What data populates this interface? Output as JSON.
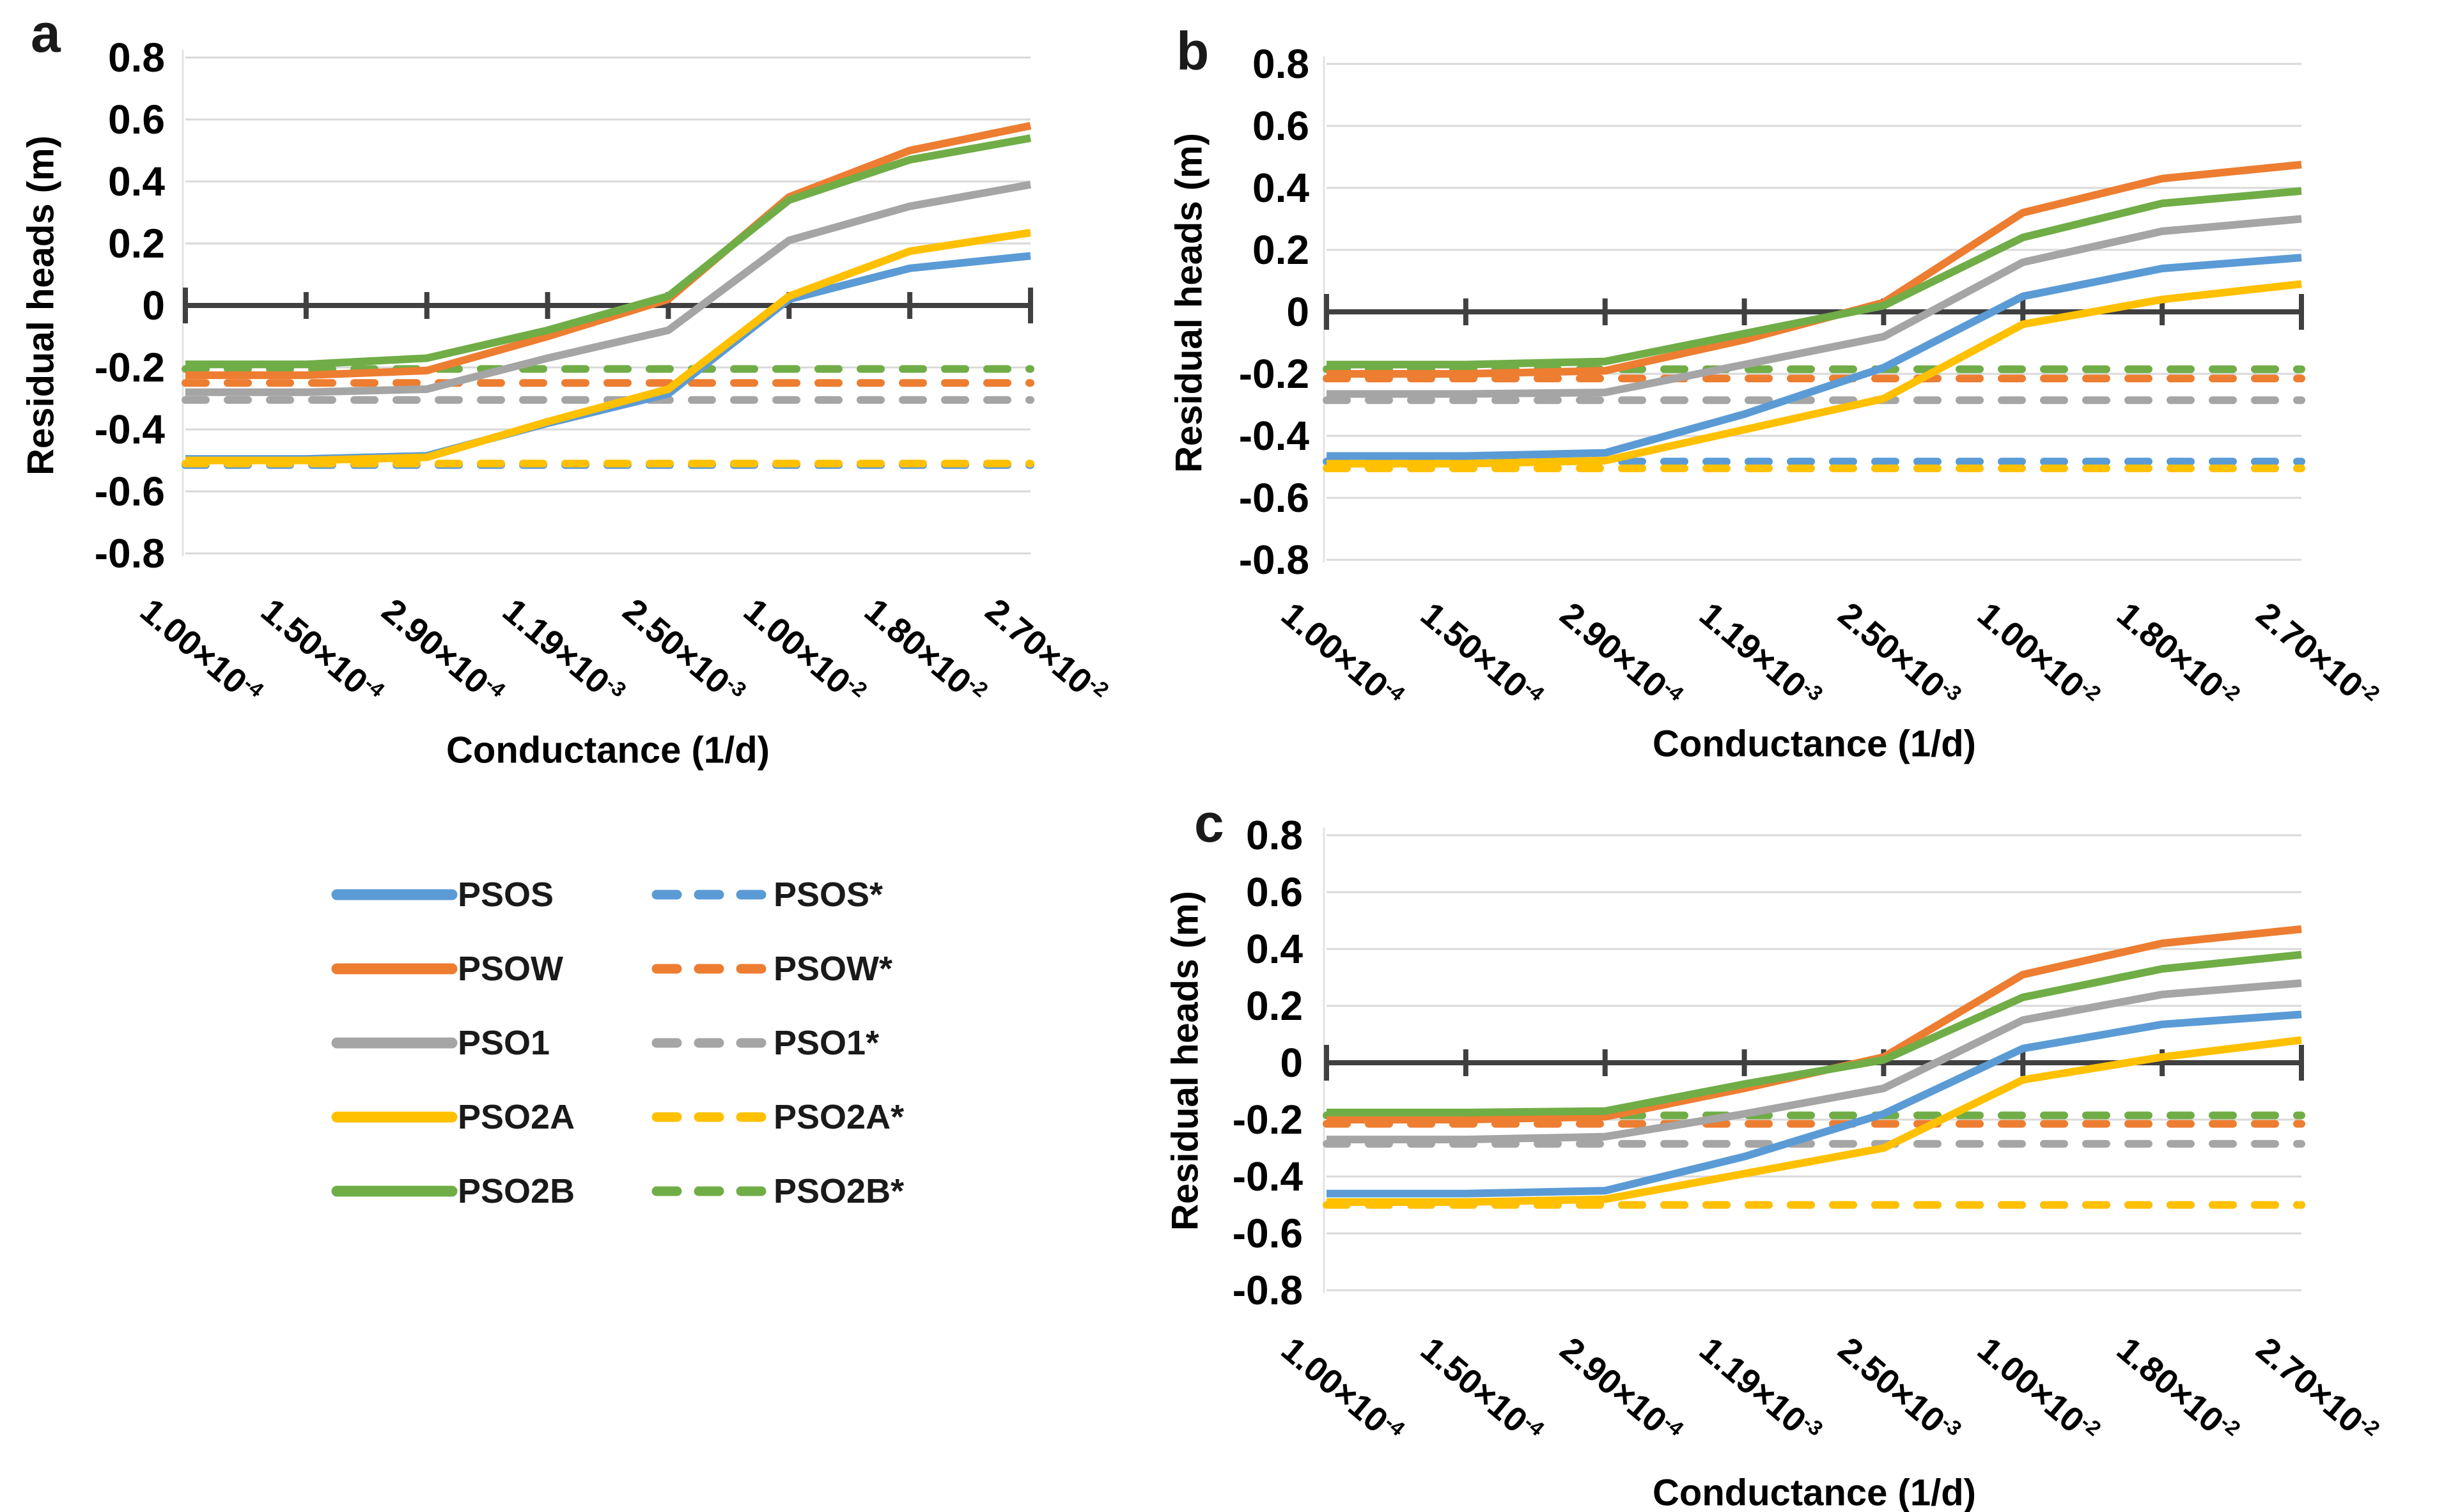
{
  "figure": {
    "description": "Three-panel line chart figure comparing residual heads vs conductance for PSO variants",
    "panel_letters": [
      "a",
      "b",
      "c"
    ]
  },
  "palette": {
    "blue": "#5B9BD5",
    "orange": "#ED7D31",
    "gray": "#A5A5A5",
    "yellow": "#FFC000",
    "green": "#70AD47",
    "axis": "#404040",
    "gridline": "#d9d9d9"
  },
  "chart_data": [
    {
      "type": "line",
      "panel_label": "a",
      "xlabel": "Conductance (1/d)",
      "ylabel": "Residual heads (m)",
      "ylim": [
        -0.8,
        0.8
      ],
      "grid": true,
      "y_ticks": [
        "0.8",
        "0.6",
        "0.4",
        "0.2",
        "0",
        "-0.2",
        "-0.4",
        "-0.6",
        "-0.8"
      ],
      "categories": [
        {
          "base": "1.00×10",
          "exp": "-4"
        },
        {
          "base": "1.50×10",
          "exp": "-4"
        },
        {
          "base": "2.90×10",
          "exp": "-4"
        },
        {
          "base": "1.19×10",
          "exp": "-3"
        },
        {
          "base": "2.50×10",
          "exp": "-3"
        },
        {
          "base": "1.00×10",
          "exp": "-2"
        },
        {
          "base": "1.80×10",
          "exp": "-2"
        },
        {
          "base": "2.70×10",
          "exp": "-2"
        }
      ],
      "series": [
        {
          "name": "PSOS*",
          "color": "#5B9BD5",
          "dash": true,
          "flat": -0.515
        },
        {
          "name": "PSOW*",
          "color": "#ED7D31",
          "dash": true,
          "flat": -0.25
        },
        {
          "name": "PSO1*",
          "color": "#A5A5A5",
          "dash": true,
          "flat": -0.305
        },
        {
          "name": "PSO2A*",
          "color": "#FFC000",
          "dash": true,
          "flat": -0.51
        },
        {
          "name": "PSO2B*",
          "color": "#70AD47",
          "dash": true,
          "flat": -0.205
        },
        {
          "name": "PSOS",
          "color": "#5B9BD5",
          "dash": false,
          "values": [
            -0.495,
            -0.495,
            -0.485,
            -0.38,
            -0.285,
            0.02,
            0.12,
            0.16
          ]
        },
        {
          "name": "PSOW",
          "color": "#ED7D31",
          "dash": false,
          "values": [
            -0.225,
            -0.225,
            -0.21,
            -0.1,
            0.02,
            0.35,
            0.5,
            0.58
          ]
        },
        {
          "name": "PSO1",
          "color": "#A5A5A5",
          "dash": false,
          "values": [
            -0.28,
            -0.28,
            -0.27,
            -0.17,
            -0.08,
            0.21,
            0.32,
            0.39
          ]
        },
        {
          "name": "PSO2A",
          "color": "#FFC000",
          "dash": false,
          "values": [
            -0.5,
            -0.5,
            -0.49,
            -0.375,
            -0.27,
            0.03,
            0.175,
            0.235
          ]
        },
        {
          "name": "PSO2B",
          "color": "#70AD47",
          "dash": false,
          "values": [
            -0.19,
            -0.19,
            -0.17,
            -0.08,
            0.03,
            0.34,
            0.47,
            0.54
          ]
        }
      ]
    },
    {
      "type": "line",
      "panel_label": "b",
      "xlabel": "Conductance (1/d)",
      "ylabel": "Residual heads (m)",
      "ylim": [
        -0.8,
        0.8
      ],
      "grid": true,
      "y_ticks": [
        "0.8",
        "0.6",
        "0.4",
        "0.2",
        "0",
        "-0.2",
        "-0.4",
        "-0.6",
        "-0.8"
      ],
      "categories": [
        {
          "base": "1.00×10",
          "exp": "-4"
        },
        {
          "base": "1.50×10",
          "exp": "-4"
        },
        {
          "base": "2.90×10",
          "exp": "-4"
        },
        {
          "base": "1.19×10",
          "exp": "-3"
        },
        {
          "base": "2.50×10",
          "exp": "-3"
        },
        {
          "base": "1.00×10",
          "exp": "-2"
        },
        {
          "base": "1.80×10",
          "exp": "-2"
        },
        {
          "base": "2.70×10",
          "exp": "-2"
        }
      ],
      "series": [
        {
          "name": "PSOS*",
          "color": "#5B9BD5",
          "dash": true,
          "flat": -0.483
        },
        {
          "name": "PSOW*",
          "color": "#ED7D31",
          "dash": true,
          "flat": -0.215
        },
        {
          "name": "PSO1*",
          "color": "#A5A5A5",
          "dash": true,
          "flat": -0.285
        },
        {
          "name": "PSO2A*",
          "color": "#FFC000",
          "dash": true,
          "flat": -0.505
        },
        {
          "name": "PSO2B*",
          "color": "#70AD47",
          "dash": true,
          "flat": -0.185
        },
        {
          "name": "PSOS",
          "color": "#5B9BD5",
          "dash": false,
          "values": [
            -0.465,
            -0.465,
            -0.455,
            -0.33,
            -0.18,
            0.05,
            0.14,
            0.175
          ]
        },
        {
          "name": "PSOW",
          "color": "#ED7D31",
          "dash": false,
          "values": [
            -0.2,
            -0.2,
            -0.19,
            -0.09,
            0.03,
            0.32,
            0.43,
            0.475
          ]
        },
        {
          "name": "PSO1",
          "color": "#A5A5A5",
          "dash": false,
          "values": [
            -0.265,
            -0.265,
            -0.26,
            -0.17,
            -0.08,
            0.16,
            0.26,
            0.3
          ]
        },
        {
          "name": "PSO2A",
          "color": "#FFC000",
          "dash": false,
          "values": [
            -0.49,
            -0.49,
            -0.48,
            -0.38,
            -0.28,
            -0.04,
            0.04,
            0.09
          ]
        },
        {
          "name": "PSO2B",
          "color": "#70AD47",
          "dash": false,
          "values": [
            -0.17,
            -0.17,
            -0.16,
            -0.07,
            0.02,
            0.24,
            0.35,
            0.39
          ]
        }
      ]
    },
    {
      "type": "line",
      "panel_label": "c",
      "xlabel": "Conductance (1/d)",
      "ylabel": "Residual heads (m)",
      "ylim": [
        -0.8,
        0.8
      ],
      "grid": true,
      "y_ticks": [
        "0.8",
        "0.6",
        "0.4",
        "0.2",
        "0",
        "-0.2",
        "-0.4",
        "-0.6",
        "-0.8"
      ],
      "categories": [
        {
          "base": "1.00×10",
          "exp": "-4"
        },
        {
          "base": "1.50×10",
          "exp": "-4"
        },
        {
          "base": "2.90×10",
          "exp": "-4"
        },
        {
          "base": "1.19×10",
          "exp": "-3"
        },
        {
          "base": "2.50×10",
          "exp": "-3"
        },
        {
          "base": "1.00×10",
          "exp": "-2"
        },
        {
          "base": "1.80×10",
          "exp": "-2"
        },
        {
          "base": "2.70×10",
          "exp": "-2"
        }
      ],
      "series": [
        {
          "name": "PSOS*",
          "color": "#5B9BD5",
          "dash": true,
          "flat": -0.5
        },
        {
          "name": "PSOW*",
          "color": "#ED7D31",
          "dash": true,
          "flat": -0.215
        },
        {
          "name": "PSO1*",
          "color": "#A5A5A5",
          "dash": true,
          "flat": -0.285
        },
        {
          "name": "PSO2A*",
          "color": "#FFC000",
          "dash": true,
          "flat": -0.5
        },
        {
          "name": "PSO2B*",
          "color": "#70AD47",
          "dash": true,
          "flat": -0.185
        },
        {
          "name": "PSOS",
          "color": "#5B9BD5",
          "dash": false,
          "values": [
            -0.46,
            -0.46,
            -0.45,
            -0.33,
            -0.18,
            0.05,
            0.135,
            0.17
          ]
        },
        {
          "name": "PSOW",
          "color": "#ED7D31",
          "dash": false,
          "values": [
            -0.2,
            -0.2,
            -0.19,
            -0.09,
            0.02,
            0.31,
            0.42,
            0.47
          ]
        },
        {
          "name": "PSO1",
          "color": "#A5A5A5",
          "dash": false,
          "values": [
            -0.27,
            -0.27,
            -0.26,
            -0.18,
            -0.09,
            0.15,
            0.24,
            0.28
          ]
        },
        {
          "name": "PSO2A",
          "color": "#FFC000",
          "dash": false,
          "values": [
            -0.49,
            -0.49,
            -0.48,
            -0.39,
            -0.3,
            -0.06,
            0.02,
            0.08
          ]
        },
        {
          "name": "PSO2B",
          "color": "#70AD47",
          "dash": false,
          "values": [
            -0.175,
            -0.175,
            -0.17,
            -0.075,
            0.01,
            0.23,
            0.33,
            0.38
          ]
        }
      ]
    }
  ],
  "legend": {
    "solid_items": [
      {
        "label": "PSOS",
        "color": "#5B9BD5"
      },
      {
        "label": "PSOW",
        "color": "#ED7D31"
      },
      {
        "label": "PSO1",
        "color": "#A5A5A5"
      },
      {
        "label": "PSO2A",
        "color": "#FFC000"
      },
      {
        "label": "PSO2B",
        "color": "#70AD47"
      }
    ],
    "dashed_items": [
      {
        "label": "PSOS*",
        "color": "#5B9BD5"
      },
      {
        "label": "PSOW*",
        "color": "#ED7D31"
      },
      {
        "label": "PSO1*",
        "color": "#A5A5A5"
      },
      {
        "label": "PSO2A*",
        "color": "#FFC000"
      },
      {
        "label": "PSO2B*",
        "color": "#70AD47"
      }
    ]
  }
}
